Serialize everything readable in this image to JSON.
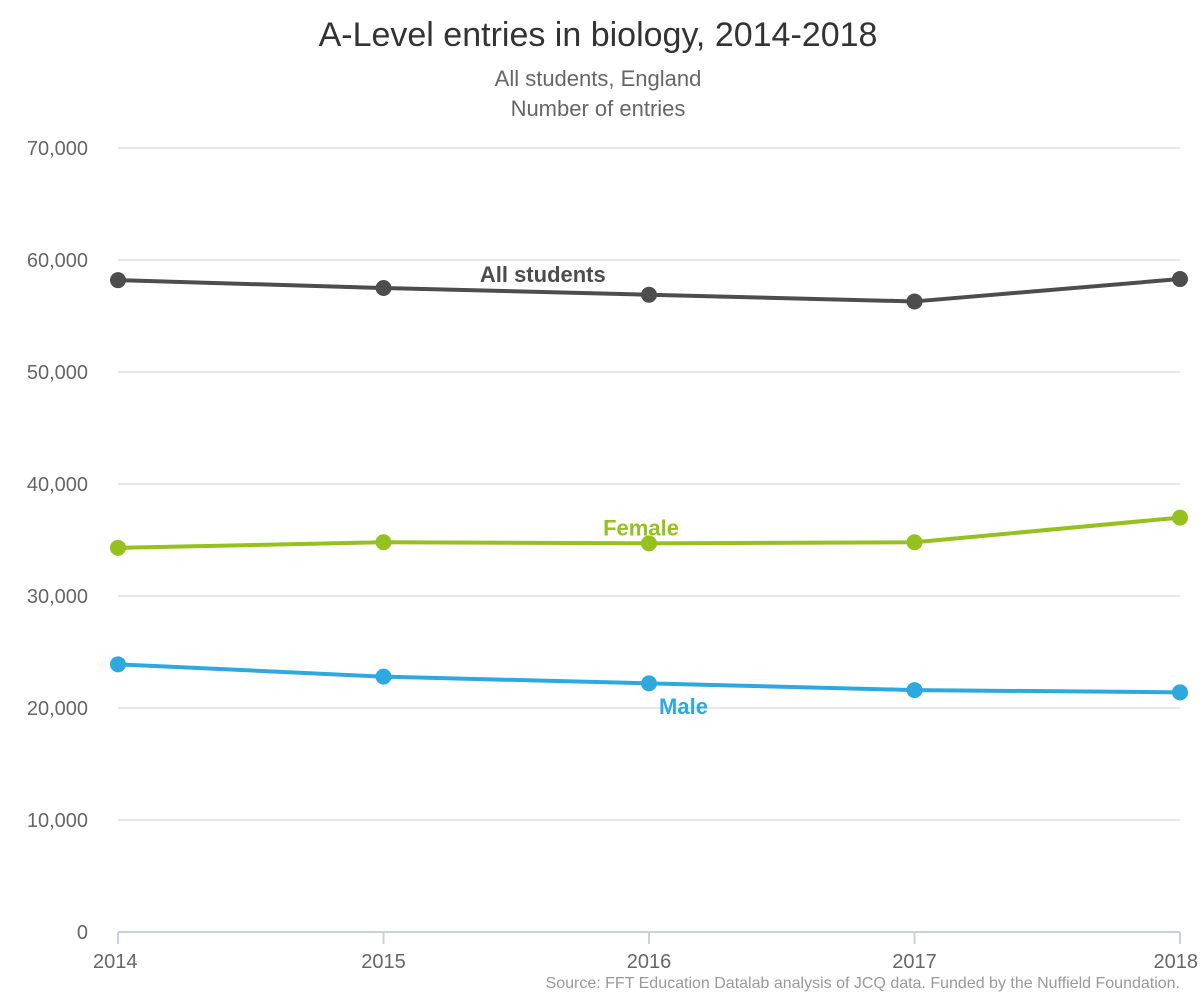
{
  "chart_data": {
    "type": "line",
    "title": "A-Level entries in biology, 2014-2018",
    "subtitle": [
      "All students, England",
      "Number of entries"
    ],
    "source": "Source: FFT Education Datalab analysis of JCQ data. Funded by the Nuffield Foundation.",
    "x": [
      "2014",
      "2015",
      "2016",
      "2017",
      "2018"
    ],
    "ylim": [
      0,
      70000
    ],
    "yticks": [
      0,
      10000,
      20000,
      30000,
      40000,
      50000,
      60000,
      70000
    ],
    "ytick_labels": [
      "0",
      "10,000",
      "20,000",
      "30,000",
      "40,000",
      "50,000",
      "60,000",
      "70,000"
    ],
    "grid": true,
    "legend": "none",
    "series": [
      {
        "name": "All students",
        "color": "#4d4d4d",
        "values": [
          58200,
          57500,
          56900,
          56300,
          58300
        ]
      },
      {
        "name": "Female",
        "color": "#95c11f",
        "values": [
          34300,
          34800,
          34700,
          34800,
          37000
        ]
      },
      {
        "name": "Male",
        "color": "#2ea9df",
        "values": [
          23900,
          22800,
          22200,
          21600,
          21400
        ]
      }
    ]
  }
}
